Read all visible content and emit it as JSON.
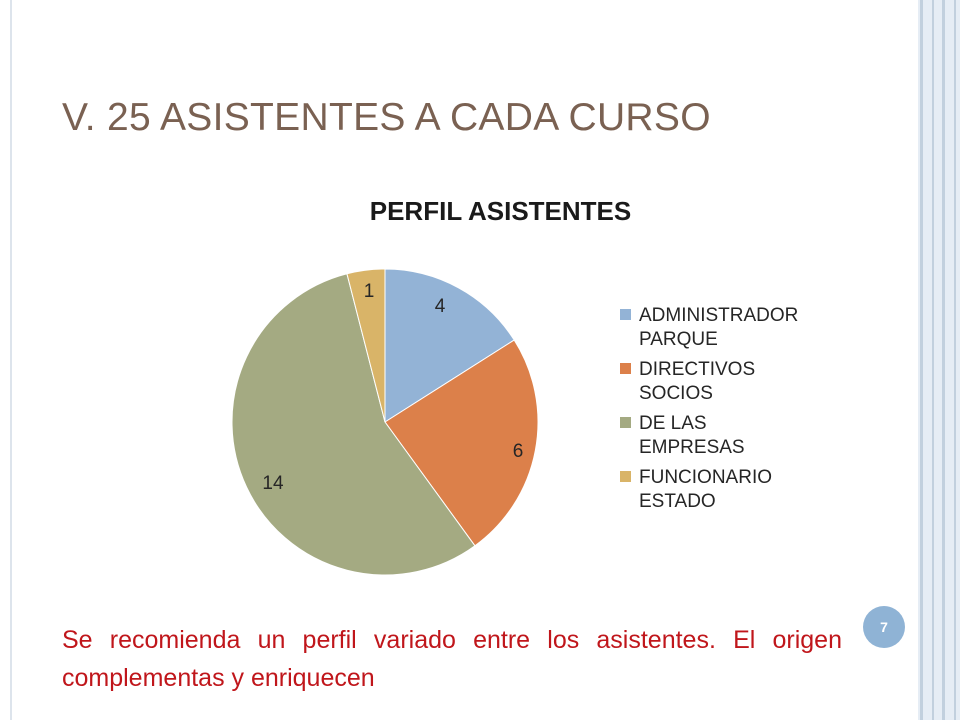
{
  "slide": {
    "title": "V. 25 ASISTENTES A CADA CURSO",
    "page_number": "7",
    "note": "Se recomienda un perfil variado entre los asistentes. El origen complementas y enriquecen",
    "colors": {
      "title": "#7a6152",
      "note": "#c0161b",
      "badge": "#8fb3d5",
      "frame": "#e6edf5"
    }
  },
  "chart_data": {
    "type": "pie",
    "title": "PERFIL ASISTENTES",
    "categories": [
      "ADMINISTRADOR PARQUE",
      "DIRECTIVOS SOCIOS",
      "DE LAS EMPRESAS",
      "FUNCIONARIO ESTADO"
    ],
    "values": [
      4,
      6,
      14,
      1
    ],
    "colors": [
      "#93b3d6",
      "#dc804a",
      "#a4aa82",
      "#d9b468"
    ],
    "data_labels": [
      "4",
      "6",
      "14",
      "1"
    ],
    "legend": "right",
    "legend_entries": [
      {
        "lines": [
          "ADMINISTRADOR",
          "PARQUE"
        ],
        "color": "#93b3d6"
      },
      {
        "lines": [
          "DIRECTIVOS",
          "SOCIOS"
        ],
        "color": "#dc804a"
      },
      {
        "lines": [
          "DE LAS",
          "EMPRESAS"
        ],
        "color": "#a4aa82"
      },
      {
        "lines": [
          "FUNCIONARIO",
          "ESTADO"
        ],
        "color": "#d9b468"
      }
    ]
  }
}
